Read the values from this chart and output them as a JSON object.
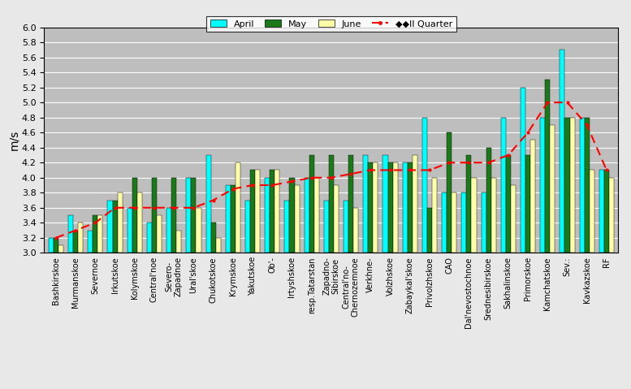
{
  "categories": [
    "Bashkirskoe",
    "Murmanskoe",
    "Severnoe",
    "Irkutskoe",
    "Kolymskoe",
    "Central'noe",
    "Severo-\nZapadnoe",
    "Ural'skoe",
    "Chukotskoe",
    "Krymskoe",
    "Yakutskoe",
    "Ob'-",
    "Irtyshskoe",
    "resp.Tatarstan",
    "Zapadno-\nSibirskoe",
    "Central'no-\nChernozemnoe",
    "Verkhne-",
    "Volzhskoe",
    "Zabaykal'skoe",
    "Privolzhskoe",
    "CAO",
    "Dal'nevostochnoe",
    "Srednesibirskoe",
    "Sakhalinskoe",
    "Primorskoe",
    "Kamchatskoe",
    "Sev.:",
    "Kavkazskoe",
    "RF"
  ],
  "april": [
    3.2,
    3.5,
    3.3,
    3.7,
    3.6,
    3.4,
    3.6,
    4.0,
    4.3,
    3.9,
    3.7,
    4.0,
    3.7,
    4.0,
    3.7,
    3.7,
    4.3,
    4.3,
    4.2,
    4.8,
    3.8,
    3.8,
    3.8,
    4.8,
    5.2,
    4.8,
    5.7,
    4.8,
    4.1
  ],
  "may": [
    3.2,
    3.3,
    3.5,
    3.7,
    4.0,
    4.0,
    4.0,
    4.0,
    3.4,
    3.9,
    4.1,
    4.1,
    4.0,
    4.3,
    4.3,
    4.3,
    4.2,
    4.2,
    4.2,
    3.6,
    4.6,
    4.3,
    4.4,
    4.3,
    4.3,
    5.3,
    4.8,
    4.8,
    4.1
  ],
  "june": [
    3.1,
    3.4,
    3.5,
    3.8,
    3.8,
    3.5,
    3.3,
    3.6,
    3.2,
    4.2,
    4.1,
    4.1,
    3.9,
    4.0,
    3.9,
    3.6,
    4.2,
    4.2,
    4.3,
    4.0,
    3.8,
    4.0,
    4.0,
    3.9,
    4.5,
    4.7,
    4.8,
    4.1,
    4.0
  ],
  "line": [
    3.2,
    3.3,
    3.4,
    3.6,
    3.6,
    3.6,
    3.6,
    3.6,
    3.7,
    3.85,
    3.9,
    3.9,
    3.95,
    4.0,
    4.0,
    4.05,
    4.1,
    4.1,
    4.1,
    4.1,
    4.2,
    4.2,
    4.2,
    4.3,
    4.6,
    5.0,
    5.0,
    4.7,
    4.1
  ],
  "bar_width": 0.25,
  "base": 3.0,
  "colors": {
    "april": "#00FFFF",
    "may": "#1A7A1A",
    "june": "#FFFFAA",
    "line": "#FF0000"
  },
  "ylim": [
    3.0,
    6.0
  ],
  "yticks": [
    3.0,
    3.2,
    3.4,
    3.6,
    3.8,
    4.0,
    4.2,
    4.4,
    4.6,
    4.8,
    5.0,
    5.2,
    5.4,
    5.6,
    5.8,
    6.0
  ],
  "ylabel": "m/s",
  "background_color": "#BEBEBE",
  "figsize": [
    7.77,
    4.79
  ],
  "dpi": 100
}
